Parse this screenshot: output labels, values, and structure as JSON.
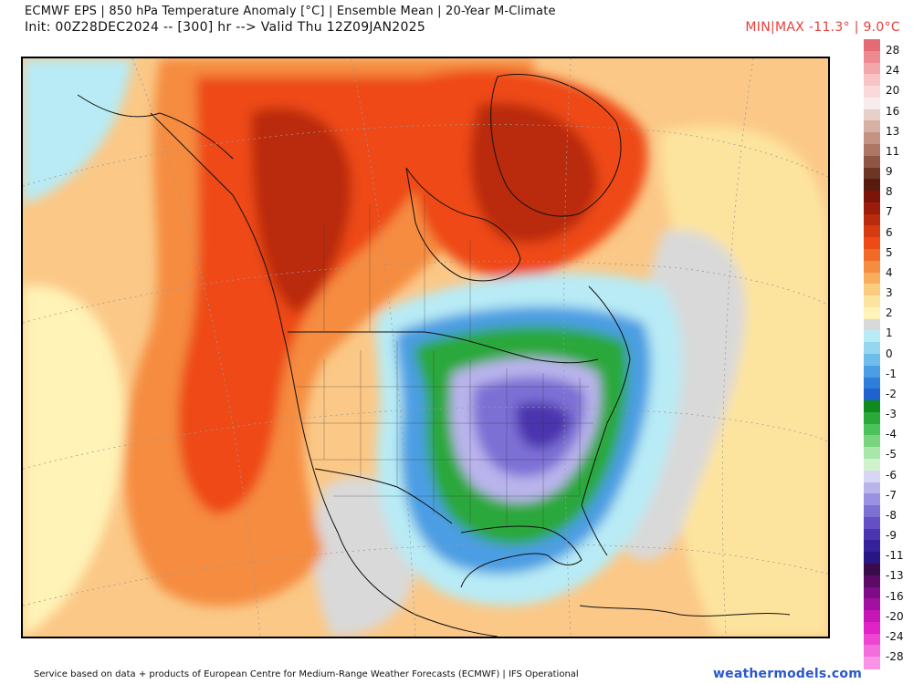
{
  "header": {
    "title_line1": "ECMWF EPS | 850 hPa Temperature Anomaly [°C] | Ensemble Mean | 20-Year M-Climate",
    "title_line2": "Init: 00Z28DEC2024 -- [300] hr --> Valid Thu 12Z09JAN2025",
    "minmax": "MIN|MAX -11.3° | 9.0°C"
  },
  "colorbar": {
    "unit": "°C",
    "labels": [
      "28",
      "24",
      "20",
      "16",
      "13",
      "11",
      "9",
      "8",
      "7",
      "6",
      "5",
      "4",
      "3",
      "2",
      "1",
      "0",
      "-1",
      "-2",
      "-3",
      "-4",
      "-5",
      "-6",
      "-7",
      "-8",
      "-9",
      "-11",
      "-13",
      "-16",
      "-20",
      "-24",
      "-28"
    ],
    "colors": [
      "#e46a73",
      "#ec8a90",
      "#f3a7ab",
      "#f8c3c5",
      "#fbd9da",
      "#f7ecec",
      "#e8cfc8",
      "#d7b1a6",
      "#c39384",
      "#ad7665",
      "#8f5646",
      "#6d3526",
      "#5a1b0f",
      "#7c1508",
      "#9c1c0a",
      "#ba2a0c",
      "#d63a10",
      "#ee4a16",
      "#f26a28",
      "#f58c40",
      "#f8ad5c",
      "#fbcb7e",
      "#fde49e",
      "#fff3b7",
      "#d9d9d9",
      "#b8ebf5",
      "#95d7f1",
      "#6fbdeb",
      "#4b9ee3",
      "#2d7fda",
      "#1e63cc",
      "#0f8a1f",
      "#2aa83a",
      "#4cc25a",
      "#78d57e",
      "#a8e7a9",
      "#cff3cc",
      "#d8d6f4",
      "#b9b4ec",
      "#9a91e2",
      "#7d70d5",
      "#6450c4",
      "#4c35ae",
      "#35229a",
      "#271683",
      "#3b0a4a",
      "#5b0a66",
      "#7f0c86",
      "#a3109f",
      "#c616b5",
      "#e022c6",
      "#ee45d3",
      "#f46ddd",
      "#f893e5"
    ]
  },
  "map": {
    "colors": {
      "ocean_warm": "#fbc887",
      "anomaly_pos_1": "#f8ad5c",
      "anomaly_pos_2": "#f58c40",
      "anomaly_pos_3": "#ee4a16",
      "anomaly_pos_4": "#ba2a0c",
      "anomaly_pos_5": "#7c1508",
      "neutral": "#d9d9d9",
      "pale_yellow": "#fff3b7",
      "cold_blue_1": "#b8ebf5",
      "cold_blue_2": "#4b9ee3",
      "cold_green": "#2aa83a",
      "cold_purple_1": "#b9b4ec",
      "cold_purple_2": "#7d70d5",
      "cold_purple_3": "#4c35ae"
    }
  },
  "footer": {
    "attribution": "Service based on data + products of European Centre for Medium-Range Weather Forecasts (ECMWF) | IFS Operational",
    "brand": "weathermodels.com"
  }
}
